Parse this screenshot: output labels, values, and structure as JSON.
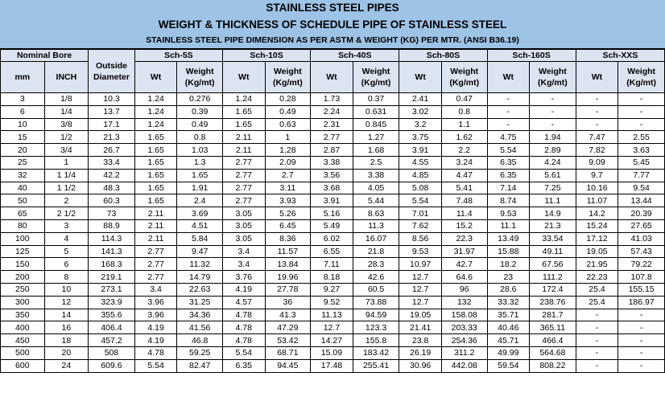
{
  "title": "STAINLESS STEEL PIPES",
  "subtitle": "WEIGHT & THICKNESS OF SCHEDULE PIPE OF STAINLESS STEEL",
  "caption": "STAINLESS STEEL PIPE DIMENSION AS PER ASTM & WEIGHT (KG) PER MTR. (ANSI B36.19)",
  "headers": {
    "nominal_bore": "Nominal Bore",
    "outside_diameter_1": "Outside",
    "outside_diameter_2": "Diameter",
    "mm": "mm",
    "inch": "INCH",
    "wt": "Wt",
    "weight_1": "Weight",
    "weight_2": "(Kg/mt)",
    "schedules": [
      "Sch-5S",
      "Sch-10S",
      "Sch-40S",
      "Sch-80S",
      "Sch-160S",
      "Sch-XXS"
    ]
  },
  "rows": [
    [
      "3",
      "1/8",
      "10.3",
      "1.24",
      "0.276",
      "1.24",
      "0.28",
      "1.73",
      "0.37",
      "2.41",
      "0.47",
      "-",
      "-",
      "-",
      "-"
    ],
    [
      "6",
      "1/4",
      "13.7",
      "1.24",
      "0.39",
      "1.65",
      "0.49",
      "2.24",
      "0.631",
      "3.02",
      "0.8",
      "-",
      "-",
      "-",
      "-"
    ],
    [
      "10",
      "3/8",
      "17.1",
      "1.24",
      "0.49",
      "1.65",
      "0.63",
      "2.31",
      "0.845",
      "3.2",
      "1.1",
      "-",
      "-",
      "-",
      "-"
    ],
    [
      "15",
      "1/2",
      "21.3",
      "1.65",
      "0.8",
      "2.11",
      "1",
      "2.77",
      "1.27",
      "3.75",
      "1.62",
      "4.75",
      "1.94",
      "7.47",
      "2.55"
    ],
    [
      "20",
      "3/4",
      "26.7",
      "1.65",
      "1.03",
      "2.11",
      "1.28",
      "2.87",
      "1.68",
      "3.91",
      "2.2",
      "5.54",
      "2.89",
      "7.82",
      "3.63"
    ],
    [
      "25",
      "1",
      "33.4",
      "1.65",
      "1.3",
      "2.77",
      "2.09",
      "3.38",
      "2.5",
      "4.55",
      "3.24",
      "6.35",
      "4.24",
      "9.09",
      "5.45"
    ],
    [
      "32",
      "1 1/4",
      "42.2",
      "1.65",
      "1.65",
      "2.77",
      "2.7",
      "3.56",
      "3.38",
      "4.85",
      "4.47",
      "6.35",
      "5.61",
      "9.7",
      "7.77"
    ],
    [
      "40",
      "1 1/2",
      "48.3",
      "1.65",
      "1.91",
      "2.77",
      "3.11",
      "3.68",
      "4.05",
      "5.08",
      "5.41",
      "7.14",
      "7.25",
      "10.16",
      "9.54"
    ],
    [
      "50",
      "2",
      "60.3",
      "1.65",
      "2.4",
      "2.77",
      "3.93",
      "3.91",
      "5.44",
      "5.54",
      "7.48",
      "8.74",
      "11.1",
      "11.07",
      "13.44"
    ],
    [
      "65",
      "2 1/2",
      "73",
      "2.11",
      "3.69",
      "3.05",
      "5.26",
      "5.16",
      "8.63",
      "7.01",
      "11.4",
      "9.53",
      "14.9",
      "14.2",
      "20.39"
    ],
    [
      "80",
      "3",
      "88.9",
      "2.11",
      "4.51",
      "3.05",
      "6.45",
      "5.49",
      "11.3",
      "7.62",
      "15.2",
      "11.1",
      "21.3",
      "15.24",
      "27.65"
    ],
    [
      "100",
      "4",
      "114.3",
      "2.11",
      "5.84",
      "3.05",
      "8.36",
      "6.02",
      "16.07",
      "8.56",
      "22.3",
      "13.49",
      "33.54",
      "17.12",
      "41.03"
    ],
    [
      "125",
      "5",
      "141.3",
      "2.77",
      "9.47",
      "3.4",
      "11.57",
      "6.55",
      "21.8",
      "9.53",
      "31.97",
      "15.88",
      "49.11",
      "19.05",
      "57.43"
    ],
    [
      "150",
      "6",
      "168.3",
      "2.77",
      "11.32",
      "3.4",
      "13.84",
      "7.11",
      "28.3",
      "10.97",
      "42.7",
      "18.2",
      "67.56",
      "21.95",
      "79.22"
    ],
    [
      "200",
      "8",
      "219.1",
      "2.77",
      "14.79",
      "3.76",
      "19.96",
      "8.18",
      "42.6",
      "12.7",
      "64.6",
      "23",
      "111.2",
      "22.23",
      "107.8"
    ],
    [
      "250",
      "10",
      "273.1",
      "3.4",
      "22.63",
      "4.19",
      "27.78",
      "9.27",
      "60.5",
      "12.7",
      "96",
      "28.6",
      "172.4",
      "25.4",
      "155.15"
    ],
    [
      "300",
      "12",
      "323.9",
      "3.96",
      "31.25",
      "4.57",
      "36",
      "9.52",
      "73.88",
      "12.7",
      "132",
      "33.32",
      "238.76",
      "25.4",
      "186.97"
    ],
    [
      "350",
      "14",
      "355.6",
      "3.96",
      "34.36",
      "4.78",
      "41.3",
      "11.13",
      "94.59",
      "19.05",
      "158.08",
      "35.71",
      "281.7",
      "-",
      "-"
    ],
    [
      "400",
      "16",
      "406.4",
      "4.19",
      "41.56",
      "4.78",
      "47.29",
      "12.7",
      "123.3",
      "21.41",
      "203.33",
      "40.46",
      "365.11",
      "-",
      "-"
    ],
    [
      "450",
      "18",
      "457.2",
      "4.19",
      "46.8",
      "4.78",
      "53.42",
      "14.27",
      "155.8",
      "23.8",
      "254.36",
      "45.71",
      "466.4",
      "-",
      "-"
    ],
    [
      "500",
      "20",
      "508",
      "4.78",
      "59.25",
      "5.54",
      "68.71",
      "15.09",
      "183.42",
      "26.19",
      "311.2",
      "49.99",
      "564.68",
      "-",
      "-"
    ],
    [
      "600",
      "24",
      "609.6",
      "5.54",
      "82.47",
      "6.35",
      "94.45",
      "17.48",
      "255.41",
      "30.96",
      "442.08",
      "59.54",
      "808.22",
      "-",
      "-"
    ]
  ]
}
